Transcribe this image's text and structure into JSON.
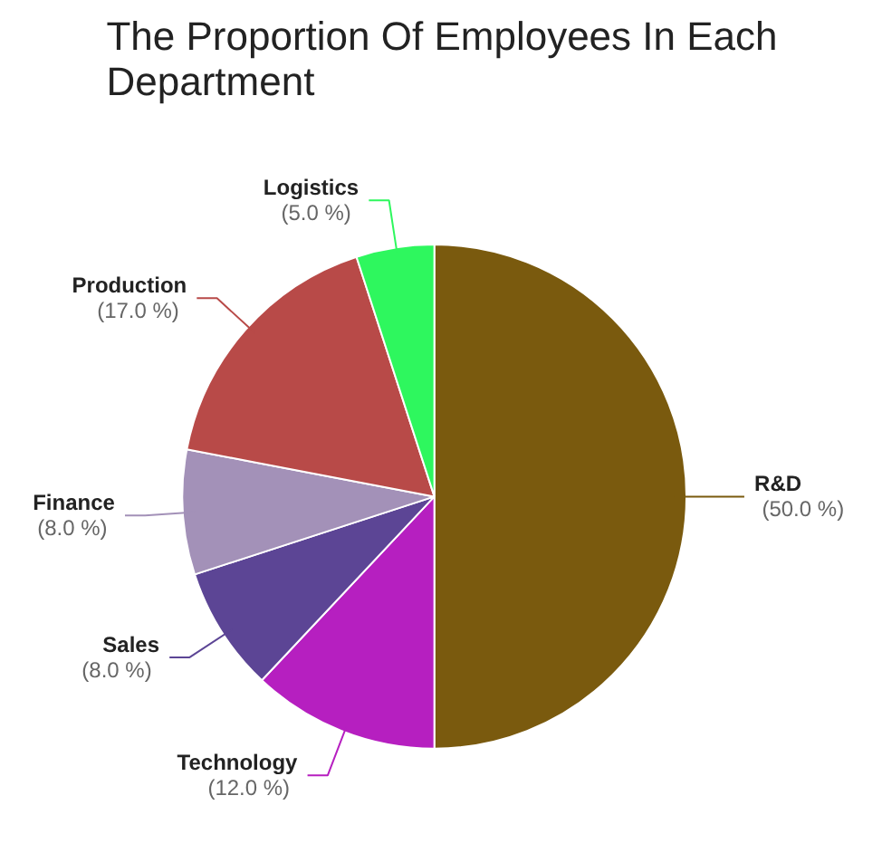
{
  "chart_data": {
    "type": "pie",
    "title": "The Proportion Of Employees In Each Department",
    "categories": [
      "R&D",
      "Technology",
      "Sales",
      "Finance",
      "Production",
      "Logistics"
    ],
    "values": [
      50,
      12,
      8,
      8,
      17,
      5
    ],
    "colors": [
      "#7a5a0e",
      "#b61fc0",
      "#5c4595",
      "#a391b8",
      "#b84a48",
      "#2ef75e"
    ],
    "value_labels": [
      "(50.0 %)",
      "(12.0 %)",
      "(8.0 %)",
      "(8.0 %)",
      "(17.0 %)",
      "(5.0 %)"
    ]
  }
}
